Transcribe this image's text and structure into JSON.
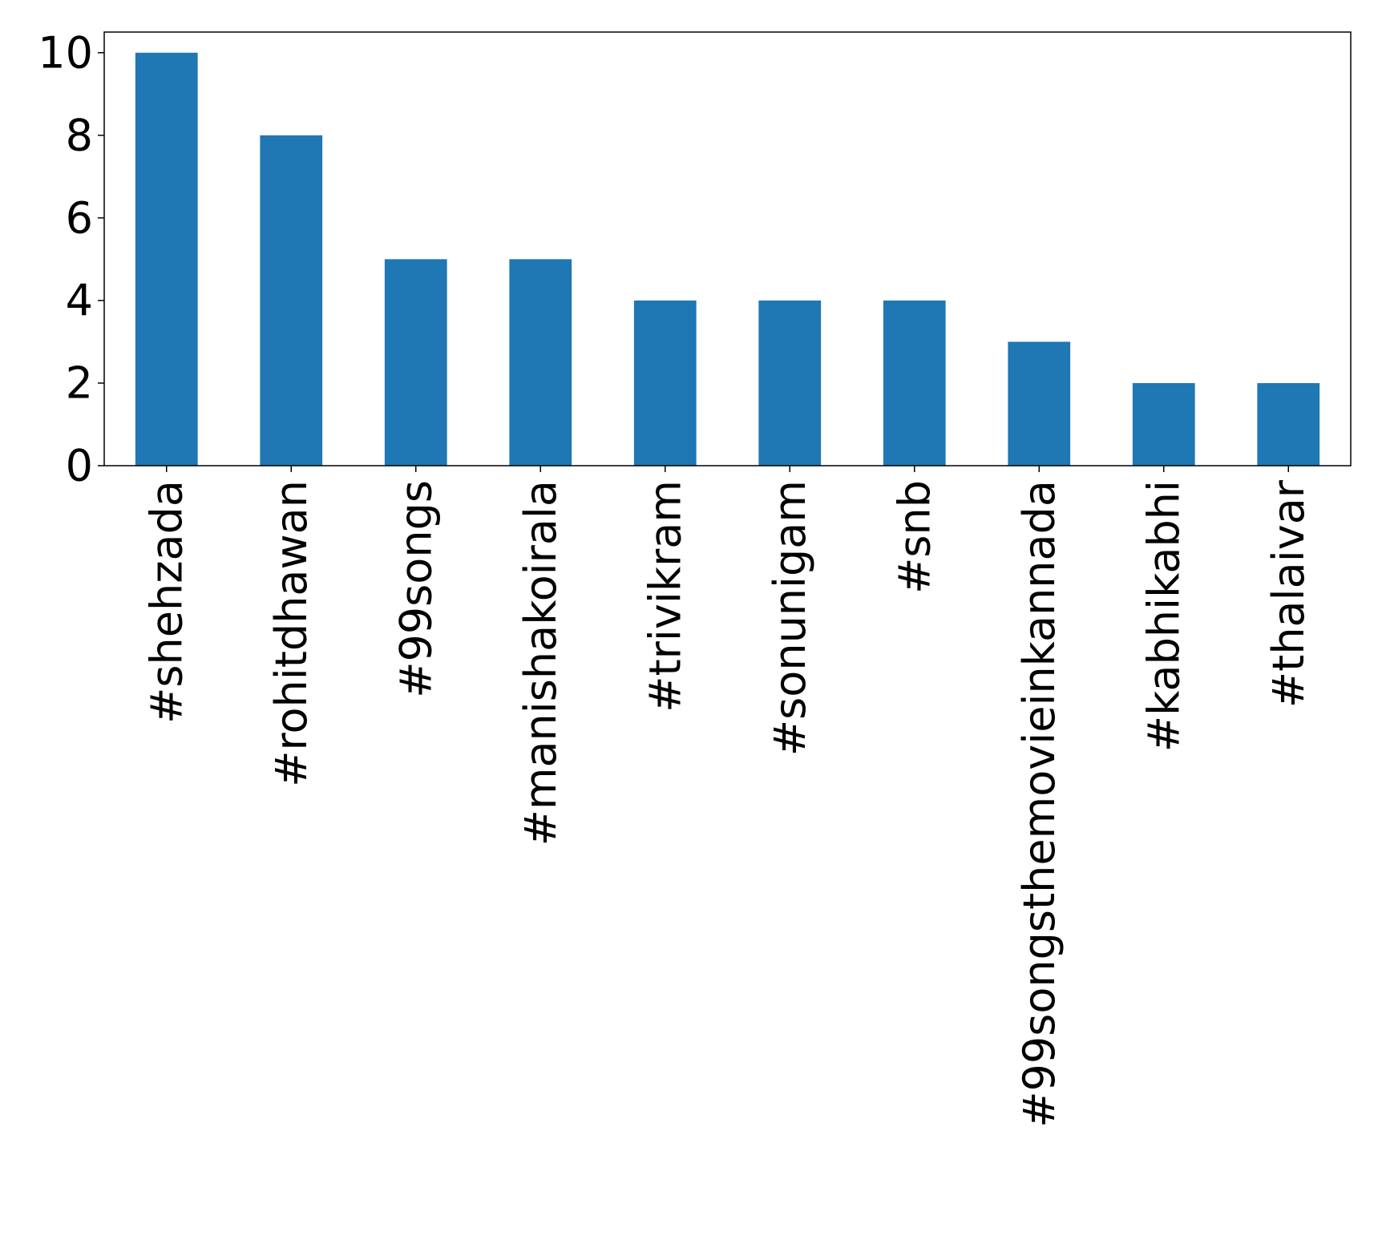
{
  "chart_data": {
    "type": "bar",
    "categories": [
      "#shehzada",
      "#rohitdhawan",
      "#99songs",
      "#manishakoirala",
      "#trivikram",
      "#sonunigam",
      "#snb",
      "#99songsthemovieinkannada",
      "#kabhikabhi",
      "#thalaivar"
    ],
    "values": [
      10,
      8,
      5,
      5,
      4,
      4,
      4,
      3,
      2,
      2
    ],
    "title": "",
    "xlabel": "",
    "ylabel": "",
    "ylim": [
      0,
      10.5
    ],
    "yticks": [
      0,
      2,
      4,
      6,
      8,
      10
    ],
    "bar_color": "#1f77b4",
    "grid": false,
    "legend": "none"
  }
}
